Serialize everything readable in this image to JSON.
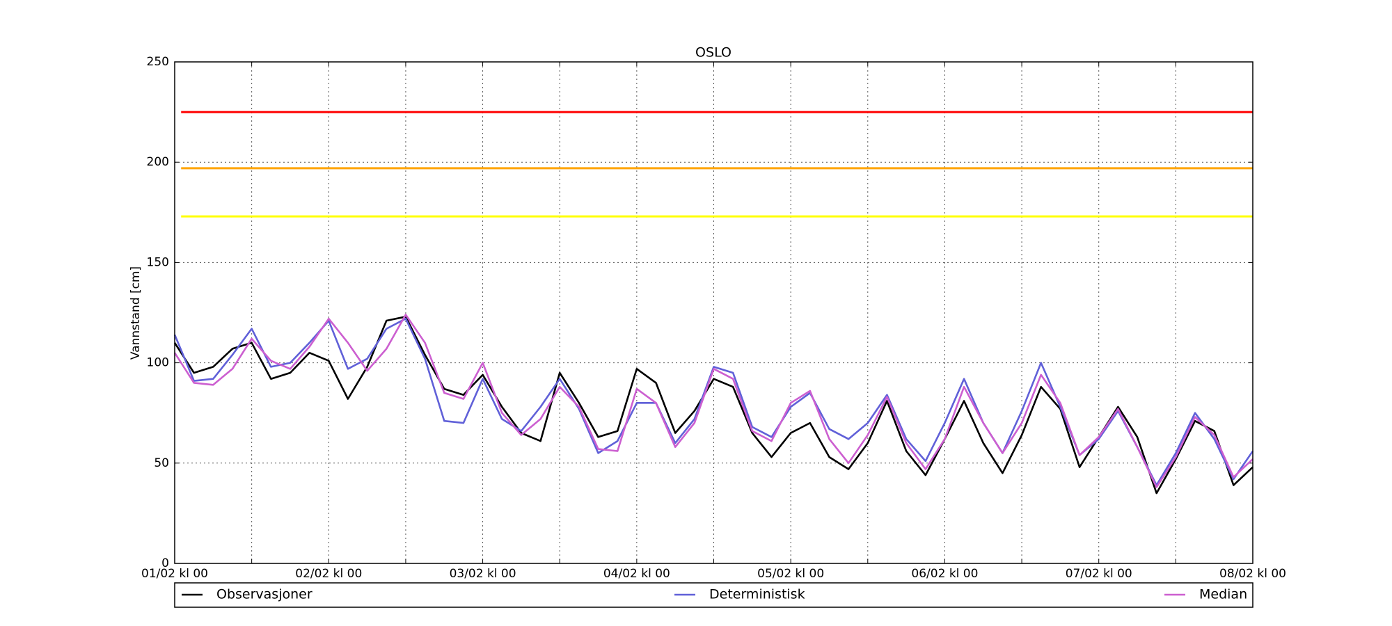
{
  "chart_data": {
    "type": "line",
    "title": "OSLO",
    "ylabel": "Vannstand [cm]",
    "x": [
      0,
      3,
      6,
      9,
      12,
      15,
      18,
      21,
      24,
      27,
      30,
      33,
      36,
      39,
      42,
      45,
      48,
      51,
      54,
      57,
      60,
      63,
      66,
      69,
      72,
      75,
      78,
      81,
      84,
      87,
      90,
      93,
      96,
      99,
      102,
      105,
      108,
      111,
      114,
      117,
      120,
      123,
      126,
      129,
      132,
      135,
      138,
      141,
      144,
      147,
      150,
      153,
      156,
      159,
      162,
      165,
      168
    ],
    "xlim": [
      0,
      168
    ],
    "xticks": [
      {
        "value": 0,
        "label": "01/02 kl 00"
      },
      {
        "value": 24,
        "label": "02/02 kl 00"
      },
      {
        "value": 48,
        "label": "03/02 kl 00"
      },
      {
        "value": 72,
        "label": "04/02 kl 00"
      },
      {
        "value": 96,
        "label": "05/02 kl 00"
      },
      {
        "value": 120,
        "label": "06/02 kl 00"
      },
      {
        "value": 144,
        "label": "07/02 kl 00"
      },
      {
        "value": 168,
        "label": "08/02 kl 00"
      }
    ],
    "xminorticks": [
      12,
      36,
      60,
      84,
      108,
      132,
      156
    ],
    "ylim": [
      0,
      250
    ],
    "yticks": [
      0,
      50,
      100,
      150,
      200,
      250
    ],
    "grid": true,
    "hlines": [
      {
        "value": 225,
        "color": "#ff0000"
      },
      {
        "value": 197,
        "color": "#ffa500"
      },
      {
        "value": 173,
        "color": "#ffff00"
      }
    ],
    "series": [
      {
        "name": "Observasjoner",
        "color": "#000000",
        "values": [
          110,
          95,
          98,
          107,
          110,
          92,
          95,
          105,
          101,
          82,
          98,
          121,
          123,
          104,
          87,
          84,
          94,
          78,
          65,
          61,
          95,
          80,
          63,
          66,
          97,
          90,
          65,
          76,
          92,
          88,
          65,
          53,
          65,
          70,
          53,
          47,
          60,
          81,
          56,
          44,
          62,
          81,
          60,
          45,
          64,
          88,
          77,
          48,
          63,
          78,
          63,
          35,
          52,
          71,
          66,
          39,
          48
        ]
      },
      {
        "name": "Deterministisk",
        "color": "#6060d8",
        "values": [
          114,
          91,
          92,
          104,
          117,
          98,
          100,
          110,
          121,
          97,
          102,
          117,
          122,
          102,
          71,
          70,
          92,
          72,
          66,
          78,
          92,
          77,
          55,
          61,
          80,
          80,
          60,
          72,
          98,
          95,
          68,
          63,
          78,
          85,
          67,
          62,
          70,
          84,
          62,
          51,
          70,
          92,
          70,
          55,
          76,
          100,
          78,
          54,
          62,
          76,
          58,
          39,
          55,
          75,
          62,
          42,
          56
        ]
      },
      {
        "name": "Median",
        "color": "#cc5fd0",
        "values": [
          105,
          90,
          89,
          97,
          112,
          101,
          97,
          108,
          122,
          110,
          96,
          107,
          124,
          110,
          85,
          82,
          100,
          75,
          64,
          72,
          88,
          78,
          57,
          56,
          87,
          80,
          58,
          70,
          97,
          92,
          66,
          61,
          80,
          86,
          62,
          50,
          64,
          83,
          60,
          47,
          62,
          88,
          70,
          55,
          70,
          94,
          80,
          54,
          63,
          77,
          58,
          38,
          53,
          73,
          64,
          43,
          52
        ]
      }
    ]
  }
}
